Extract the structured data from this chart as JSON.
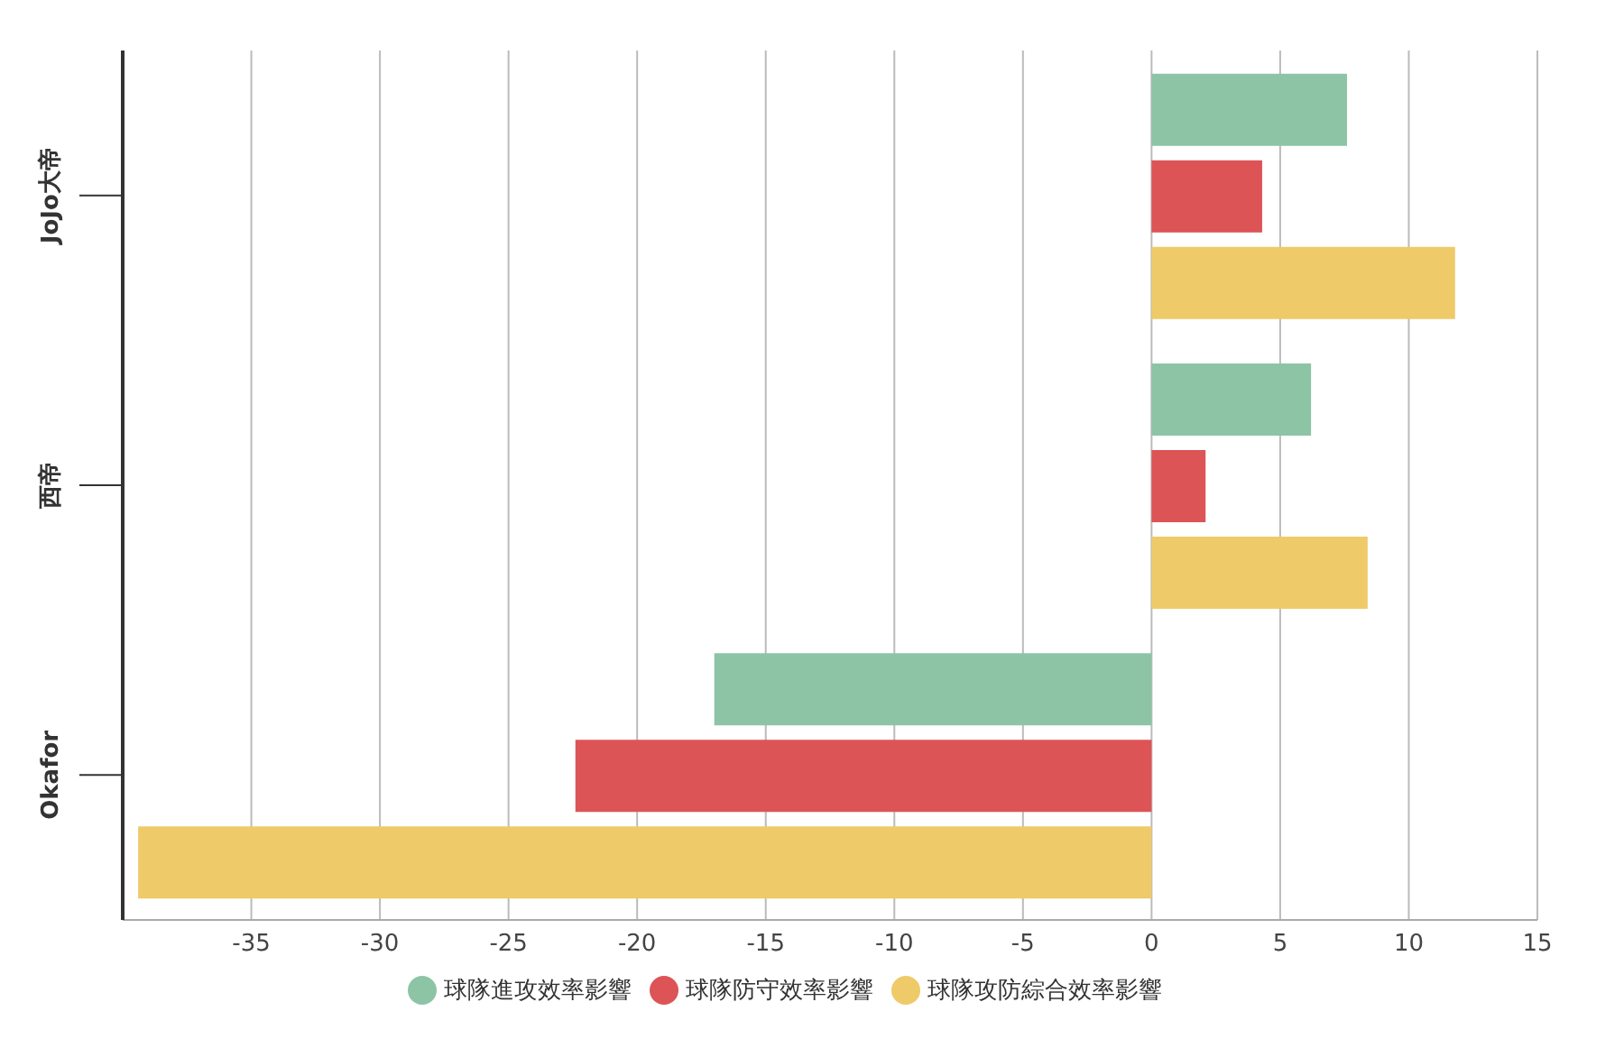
{
  "chart_data": {
    "type": "bar",
    "orientation": "horizontal",
    "categories": [
      "JoJo大帝",
      "西帝",
      "Okafor"
    ],
    "series": [
      {
        "name": "球隊進攻效率影響",
        "color": "#8dc4a6",
        "values": [
          7.6,
          6.2,
          -17
        ]
      },
      {
        "name": "球隊防守效率影響",
        "color": "#dd5456",
        "values": [
          4.3,
          2.1,
          -22.4
        ]
      },
      {
        "name": "球隊攻防綜合效率影響",
        "color": "#eeca69",
        "values": [
          11.8,
          8.4,
          -39.4
        ]
      }
    ],
    "xlim": [
      -40,
      15
    ],
    "xticks": [
      -35,
      -30,
      -25,
      -20,
      -15,
      -10,
      -5,
      0,
      5,
      10,
      15
    ],
    "grid": "x",
    "legend": "bottom"
  }
}
